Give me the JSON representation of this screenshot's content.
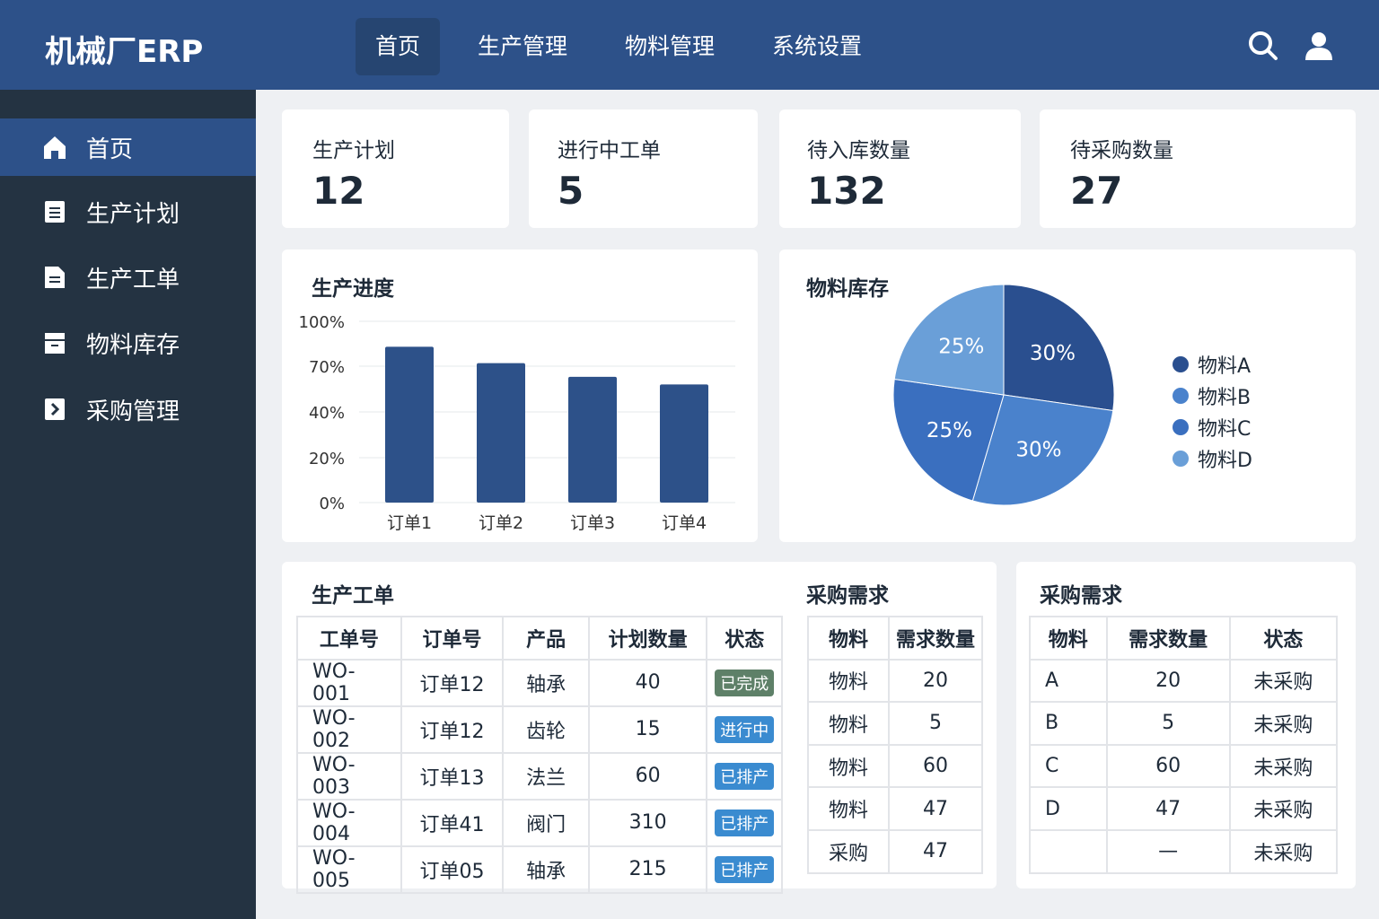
{
  "app": {
    "title": "机械厂ERP"
  },
  "nav": [
    {
      "label": "首页",
      "active": true
    },
    {
      "label": "生产管理"
    },
    {
      "label": "物料管理"
    },
    {
      "label": "系统设置"
    }
  ],
  "header_icons": [
    "search-icon",
    "user-icon"
  ],
  "sidebar": [
    {
      "label": "首页",
      "icon": "home-icon",
      "active": true
    },
    {
      "label": "生产计划",
      "icon": "document-icon"
    },
    {
      "label": "生产工单",
      "icon": "file-icon"
    },
    {
      "label": "物料库存",
      "icon": "archive-icon"
    },
    {
      "label": "采购管理",
      "icon": "chevron-right-icon"
    }
  ],
  "stats": [
    {
      "label": "生产计划",
      "value": "12"
    },
    {
      "label": "进行中工单",
      "value": "5"
    },
    {
      "label": "待入库数量",
      "value": "132"
    },
    {
      "label": "待采购数量",
      "value": "27"
    }
  ],
  "colors": {
    "header": "#2d5189",
    "sidebar": "#243342",
    "bar": "#2d5189",
    "badge_done": "#5e8068",
    "badge_active": "#3a8bd0"
  },
  "chart_data": [
    {
      "type": "bar",
      "title": "生产进度",
      "categories": [
        "订单1",
        "订单2",
        "订单3",
        "订单4"
      ],
      "values": [
        83,
        72,
        63,
        58
      ],
      "yticks": [
        "100%",
        "70%",
        "40%",
        "20%",
        "0%"
      ],
      "ytick_values": [
        100,
        70,
        40,
        20,
        0
      ],
      "grid": true
    },
    {
      "type": "pie",
      "title": "物料库存",
      "labels": [
        "物料A",
        "物料B",
        "物料C",
        "物料D"
      ],
      "values": [
        30,
        30,
        25,
        25
      ],
      "slice_labels": [
        "30%",
        "30%",
        "25%",
        "25%"
      ],
      "colors": [
        "#2a4f8f",
        "#4a82cc",
        "#3a6fbf",
        "#6a9fd8"
      ],
      "legend": "right"
    }
  ],
  "workorders": {
    "title": "生产工单",
    "headers": [
      "工单号",
      "订单号",
      "产品",
      "计划数量",
      "状态"
    ],
    "rows": [
      [
        "WO-001",
        "订单12",
        "轴承",
        "40",
        "已完成"
      ],
      [
        "WO-002",
        "订单12",
        "齿轮",
        "15",
        "进行中"
      ],
      [
        "WO-003",
        "订单13",
        "法兰",
        "60",
        "已排产"
      ],
      [
        "WO-004",
        "订单41",
        "阀门",
        "310",
        "已排产"
      ],
      [
        "WO-005",
        "订单05",
        "轴承",
        "215",
        "已排产"
      ]
    ]
  },
  "purchase1": {
    "title": "采购需求",
    "headers": [
      "物料",
      "需求数量"
    ],
    "rows": [
      [
        "物料",
        "20"
      ],
      [
        "物料",
        "5"
      ],
      [
        "物料",
        "60"
      ],
      [
        "物料",
        "47"
      ],
      [
        "采购",
        "47"
      ]
    ]
  },
  "purchase2": {
    "title": "采购需求",
    "headers": [
      "物料",
      "需求数量",
      "状态"
    ],
    "rows": [
      [
        "A",
        "20",
        "未采购"
      ],
      [
        "B",
        "5",
        "未采购"
      ],
      [
        "C",
        "60",
        "未采购"
      ],
      [
        "D",
        "47",
        "未采购"
      ],
      [
        "",
        "—",
        "未采购"
      ]
    ]
  }
}
